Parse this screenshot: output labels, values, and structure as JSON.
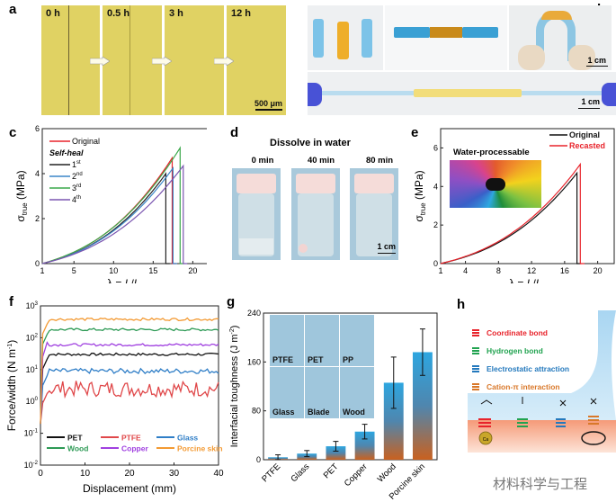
{
  "panels": {
    "a": {
      "label": "a",
      "frames": [
        "0 h",
        "0.5 h",
        "3 h",
        "12 h"
      ],
      "scale_bar": "500 μm",
      "colors": {
        "film": "#e0d263"
      }
    },
    "b": {
      "label": "b",
      "scale_bar_top": "1 cm",
      "scale_bar_bottom": "1 cm"
    },
    "d": {
      "label": "d",
      "title": "Dissolve in water",
      "times": [
        "0 min",
        "40 min",
        "80 min"
      ],
      "scale_bar": "1 cm"
    },
    "g_inset": {
      "tiles": [
        "PTFE",
        "PET",
        "PP",
        "Glass",
        "Blade",
        "Wood"
      ]
    },
    "h": {
      "label": "h",
      "legend": [
        {
          "label": "Coordinate bond",
          "color": "#e8232b"
        },
        {
          "label": "Hydrogen bond",
          "color": "#21a350"
        },
        {
          "label": "Electrostatic attraction",
          "color": "#2479bd"
        },
        {
          "label": "Cation-π interaction",
          "color": "#d9782a"
        }
      ],
      "ion_label": "Ca"
    },
    "watermark": "材料科学与工程"
  },
  "chart_data": [
    {
      "id": "c",
      "label": "c",
      "type": "line",
      "xlabel": "λ = L/L0",
      "ylabel": "σtrue (MPa)",
      "xlim": [
        1,
        22
      ],
      "ylim": [
        0,
        6
      ],
      "xticks": [
        1,
        5,
        10,
        15,
        20
      ],
      "yticks": [
        0,
        2,
        4,
        6
      ],
      "legend_heading": "Self-heal",
      "legend_position": "top-left",
      "series": [
        {
          "name": "Original",
          "color": "#e8232b",
          "break_x": 17.4,
          "peak_y": 4.7
        },
        {
          "name": "1st",
          "color": "#222222",
          "break_x": 16.6,
          "peak_y": 4.0
        },
        {
          "name": "2nd",
          "color": "#3a86c8",
          "break_x": 17.5,
          "peak_y": 4.25
        },
        {
          "name": "3rd",
          "color": "#3aa84a",
          "break_x": 18.4,
          "peak_y": 5.15
        },
        {
          "name": "4th",
          "color": "#7a55b0",
          "break_x": 18.8,
          "peak_y": 4.35
        }
      ]
    },
    {
      "id": "e",
      "label": "e",
      "type": "line",
      "xlabel": "λ = L/L0",
      "ylabel": "σtrue (MPa)",
      "xlim": [
        1,
        22
      ],
      "ylim": [
        0,
        7
      ],
      "xticks": [
        1,
        4,
        8,
        12,
        16,
        20
      ],
      "yticks": [
        0,
        2,
        4,
        6
      ],
      "inset_title": "Water-processable",
      "legend_position": "top-right",
      "series": [
        {
          "name": "Original",
          "color": "#111111",
          "break_x": 17.5,
          "peak_y": 4.7
        },
        {
          "name": "Recasted",
          "color": "#e8232b",
          "break_x": 17.9,
          "peak_y": 5.15
        }
      ]
    },
    {
      "id": "f",
      "label": "f",
      "type": "line",
      "xlabel": "Displacement (mm)",
      "ylabel": "Force/width (N m-1)",
      "xlim": [
        0,
        40
      ],
      "ylim_log10": [
        -2,
        3
      ],
      "xticks": [
        0,
        10,
        20,
        30,
        40
      ],
      "yticks": [
        "10^-2",
        "10^-1",
        "10^0",
        "10^1",
        "10^2",
        "10^3"
      ],
      "legend_position": "bottom",
      "series": [
        {
          "name": "PET",
          "color": "#111111",
          "plateau": 30
        },
        {
          "name": "PTFE",
          "color": "#e0484a",
          "plateau": 2.5
        },
        {
          "name": "Glass",
          "color": "#2f7ec7",
          "plateau": 9
        },
        {
          "name": "Wood",
          "color": "#2d9a55",
          "plateau": 180
        },
        {
          "name": "Copper",
          "color": "#a040e0",
          "plateau": 60
        },
        {
          "name": "Porcine skin",
          "color": "#f39a33",
          "plateau": 380
        }
      ]
    },
    {
      "id": "g",
      "label": "g",
      "type": "bar",
      "xlabel": "",
      "ylabel": "Interfacial toughness (J m-2)",
      "ylim": [
        0,
        240
      ],
      "yticks": [
        0,
        80,
        160,
        240
      ],
      "categories": [
        "PTFE",
        "Glass",
        "PET",
        "Copper",
        "Wood",
        "Porcine skin"
      ],
      "values": [
        4,
        10,
        22,
        46,
        126,
        176
      ],
      "errors": [
        4,
        5,
        8,
        12,
        42,
        38
      ],
      "colors": {
        "top": "#2da6e0",
        "bottom": "#c9611f"
      }
    }
  ]
}
